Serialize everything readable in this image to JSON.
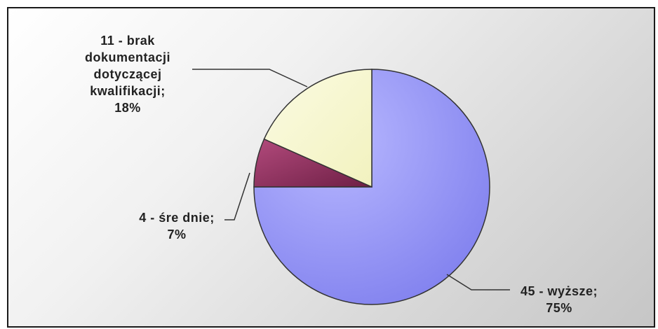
{
  "chart_data": {
    "type": "pie",
    "title": "",
    "start_angle": "12 o'clock, clockwise",
    "series": [
      {
        "values": [
          45,
          4,
          11
        ],
        "percent": [
          75,
          7,
          18
        ]
      }
    ],
    "slices": [
      {
        "category": "wyższe",
        "value": 45,
        "percent": 75,
        "label_line1": "45 - wyższe;",
        "label_line2": "75%",
        "color": "#9999ff"
      },
      {
        "category": "średnie",
        "value": 4,
        "percent": 7,
        "label_line1": "4 - śre dnie;",
        "label_line2": "7%",
        "color": "#993366"
      },
      {
        "category": "brak dokumentacji dotyczącej kwalifikacji",
        "value": 11,
        "percent": 18,
        "label_lines": [
          "11 - brak",
          "dokumentacji",
          "dotyczącej",
          "kwalifikacji;",
          "18%"
        ],
        "color": "#ffffcc"
      }
    ],
    "legend": "none",
    "data_labels": "outside with leader lines"
  }
}
